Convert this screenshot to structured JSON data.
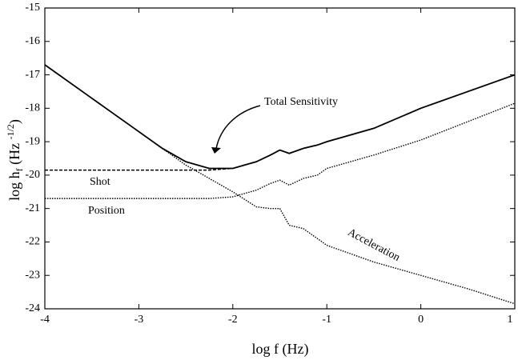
{
  "chart_data": {
    "type": "line",
    "x_label": "log f (Hz)",
    "y_label": [
      "log h",
      "f",
      " (Hz ",
      "-1/2",
      ")"
    ],
    "x": [
      -4,
      -3.5,
      -3,
      -2.75,
      -2.5,
      -2.25,
      -2,
      -1.75,
      -1.6,
      -1.5,
      -1.4,
      -1.25,
      -1.1,
      -1,
      -0.5,
      0,
      0.5,
      1
    ],
    "series": [
      {
        "name": "Total Sensitivity",
        "color": "#000000",
        "style": "solid",
        "values": [
          -16.7,
          -17.7,
          -18.7,
          -19.2,
          -19.6,
          -19.8,
          -19.8,
          -19.6,
          -19.4,
          -19.25,
          -19.35,
          -19.2,
          -19.1,
          -19.0,
          -18.6,
          -18.0,
          -17.5,
          -17.0
        ]
      },
      {
        "name": "Shot",
        "color": "#000000",
        "style": "dashed",
        "values": [
          -19.85,
          -19.85,
          -19.85,
          -19.85,
          -19.85,
          -19.85,
          -19.8,
          -19.6,
          -19.4,
          -19.25,
          -19.35,
          -19.2,
          -19.1,
          -19.0,
          -18.6,
          -18.0,
          -17.5,
          -17.0
        ]
      },
      {
        "name": "Position",
        "color": "#000000",
        "style": "dotted",
        "values": [
          -20.7,
          -20.7,
          -20.7,
          -20.7,
          -20.7,
          -20.7,
          -20.65,
          -20.45,
          -20.25,
          -20.15,
          -20.3,
          -20.1,
          -20.0,
          -19.8,
          -19.4,
          -18.95,
          -18.4,
          -17.85
        ]
      },
      {
        "name": "Acceleration",
        "color": "#000000",
        "style": "dotted",
        "values": [
          -16.7,
          -17.7,
          -18.7,
          -19.2,
          -19.7,
          -20.1,
          -20.5,
          -20.95,
          -21.0,
          -21.0,
          -21.5,
          -21.6,
          -21.9,
          -22.1,
          -22.6,
          -23.0,
          -23.4,
          -23.85
        ]
      }
    ],
    "xlim": [
      -4,
      1
    ],
    "xticks": [
      -4,
      -3,
      -2,
      -1,
      0,
      1
    ],
    "ylim": [
      -24,
      -15
    ],
    "yticks": [
      -24,
      -23,
      -22,
      -21,
      -20,
      -19,
      -18,
      -17,
      -16,
      -15
    ]
  }
}
